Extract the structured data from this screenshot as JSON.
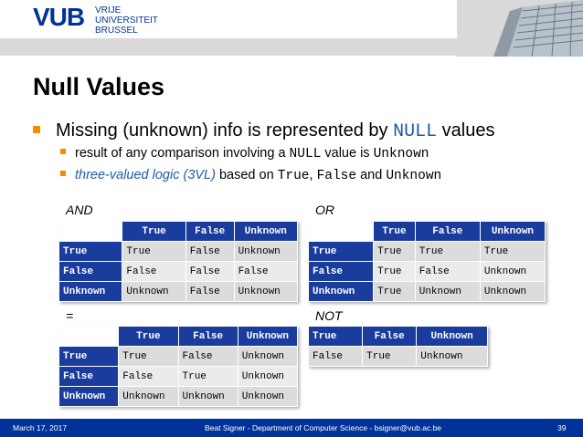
{
  "header": {
    "logo": {
      "mark": "VUB",
      "lines": [
        "VRIJE",
        "UNIVERSITEIT",
        "BRUSSEL"
      ]
    }
  },
  "slide": {
    "title": "Null Values",
    "bullet1": {
      "pre": "Missing (unknown) info is represented by ",
      "code": "NULL",
      "post": " values"
    },
    "sub1": {
      "pre": "result of any comparison involving a ",
      "code1": "NULL",
      "mid": " value is ",
      "code2": "Unknown"
    },
    "sub2": {
      "em": "three-valued logic (3VL)",
      "pre": " based on ",
      "code1": "True",
      "sep1": ", ",
      "code2": "False",
      "sep2": " and ",
      "code3": "Unknown"
    }
  },
  "tables": {
    "and": {
      "label": "AND",
      "header": [
        "",
        "True",
        "False",
        "Unknown"
      ],
      "rows": [
        [
          "True",
          "True",
          "False",
          "Unknown"
        ],
        [
          "False",
          "False",
          "False",
          "False"
        ],
        [
          "Unknown",
          "Unknown",
          "False",
          "Unknown"
        ]
      ]
    },
    "or": {
      "label": "OR",
      "header": [
        "",
        "True",
        "False",
        "Unknown"
      ],
      "rows": [
        [
          "True",
          "True",
          "True",
          "True"
        ],
        [
          "False",
          "True",
          "False",
          "Unknown"
        ],
        [
          "Unknown",
          "True",
          "Unknown",
          "Unknown"
        ]
      ]
    },
    "eq": {
      "label": "=",
      "header": [
        "",
        "True",
        "False",
        "Unknown"
      ],
      "rows": [
        [
          "True",
          "True",
          "False",
          "Unknown"
        ],
        [
          "False",
          "False",
          "True",
          "Unknown"
        ],
        [
          "Unknown",
          "Unknown",
          "Unknown",
          "Unknown"
        ]
      ]
    },
    "not": {
      "label": "NOT",
      "header": [
        "True",
        "False",
        "Unknown"
      ],
      "rows": [
        [
          "False",
          "True",
          "Unknown"
        ]
      ]
    }
  },
  "footer": {
    "date": "March 17, 2017",
    "center": "Beat Signer - Department of Computer Science - bsigner@vub.ac.be",
    "page": "39"
  },
  "colors": {
    "brand": "#003399",
    "bullet": "#f28c00",
    "code": "#1f5aa8",
    "table_header": "#1a3c9c"
  }
}
